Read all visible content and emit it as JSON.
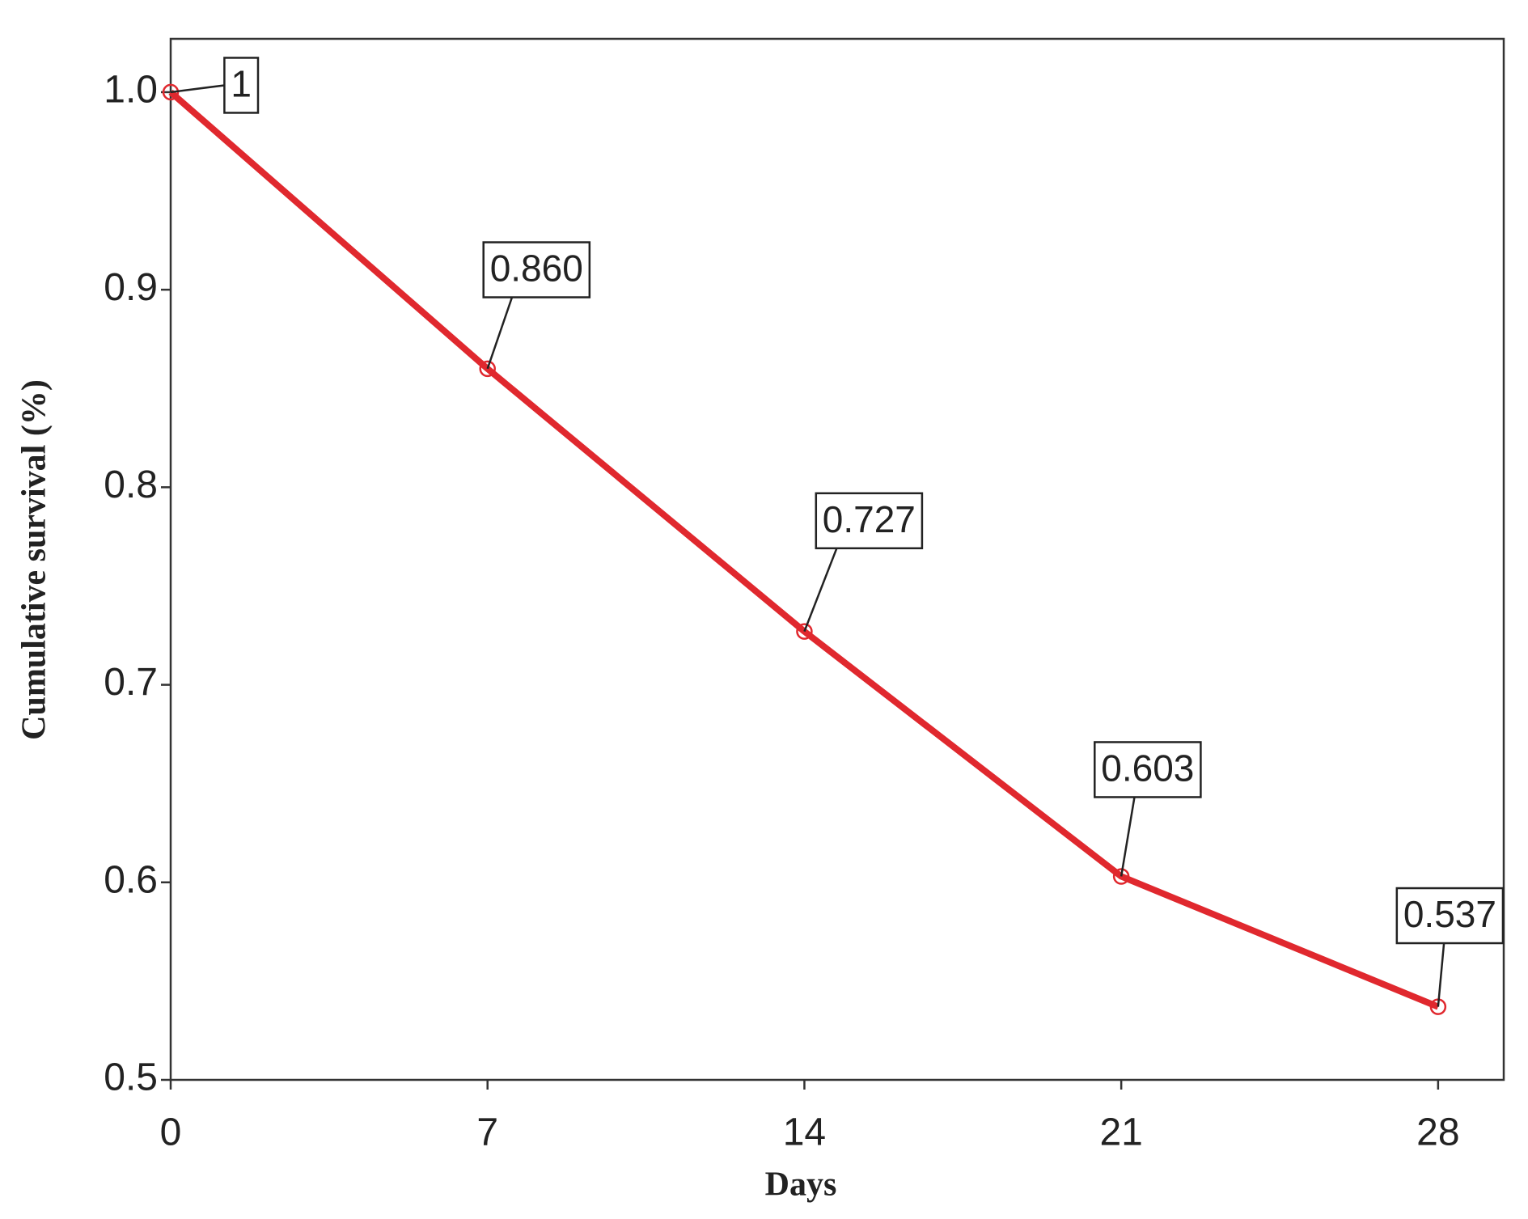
{
  "chart_data": {
    "type": "line",
    "x_label": "Days",
    "y_label": "Cumulative survival (%)",
    "x": [
      0,
      7,
      14,
      21,
      28
    ],
    "values": [
      1,
      0.86,
      0.727,
      0.603,
      0.537
    ],
    "value_labels": [
      "1",
      "0.860",
      "0.727",
      "0.603",
      "0.537"
    ],
    "color": "#e0282e",
    "xlim": [
      0,
      29.45
    ],
    "ylim": [
      0.5,
      1.027
    ],
    "xticks": [
      0,
      7,
      14,
      21,
      28
    ],
    "yticks": [
      {
        "value": 1,
        "label": "1.0"
      },
      0.9,
      0.8,
      0.7,
      0.6,
      0.5
    ]
  }
}
